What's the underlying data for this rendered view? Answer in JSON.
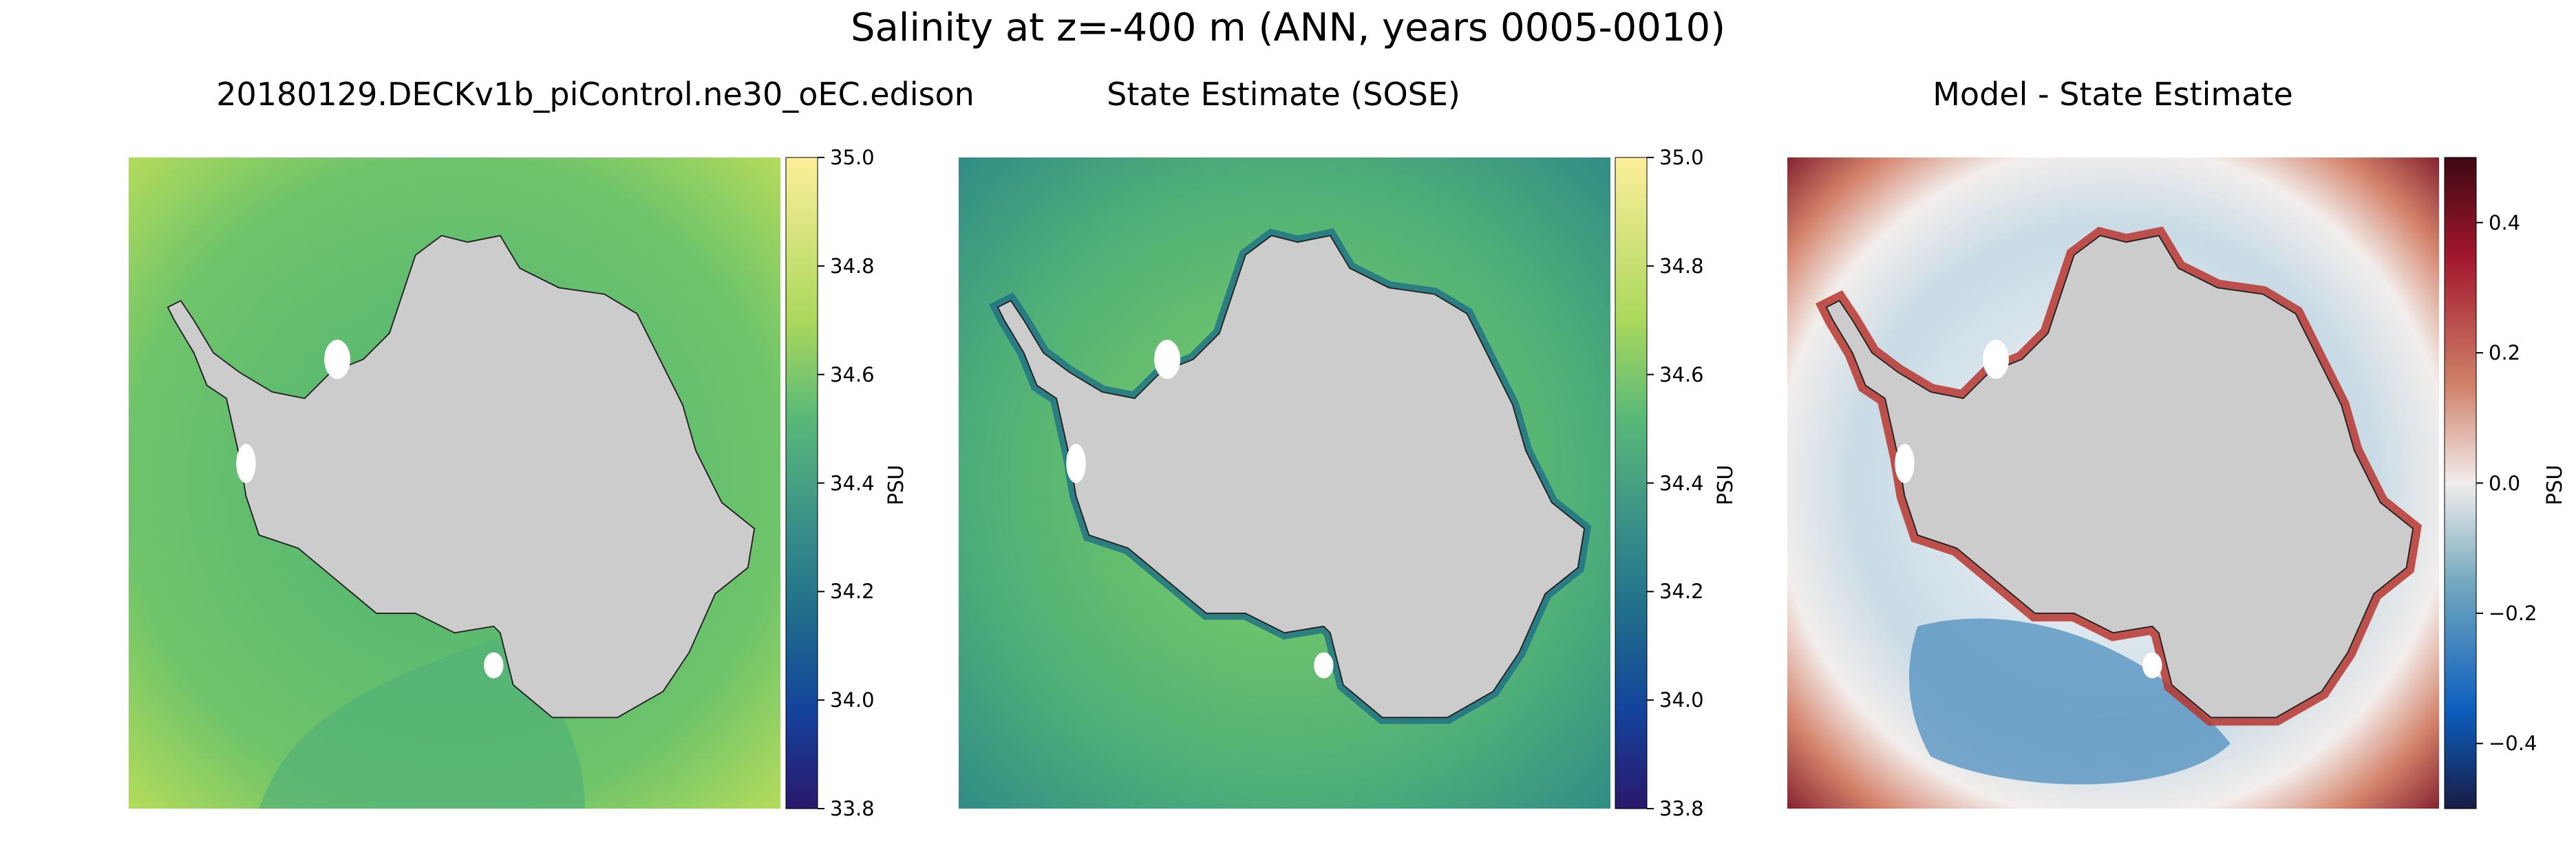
{
  "chart_data": [
    {
      "type": "heatmap",
      "title": "20180129.DECKv1b_piControl.ne30_oEC.edison",
      "colormap": "haline",
      "clim": [
        33.8,
        35.0
      ],
      "colorbar_ticks": [
        "35.0",
        "34.8",
        "34.6",
        "34.4",
        "34.2",
        "34.0",
        "33.8"
      ],
      "colorbar_label": "PSU",
      "field_summary": {
        "open_ocean": 34.62,
        "shelf": 34.5,
        "outer_edge": 34.75
      }
    },
    {
      "type": "heatmap",
      "title": "State Estimate (SOSE)",
      "colormap": "haline",
      "clim": [
        33.8,
        35.0
      ],
      "colorbar_ticks": [
        "35.0",
        "34.8",
        "34.6",
        "34.4",
        "34.2",
        "34.0",
        "33.8"
      ],
      "colorbar_label": "PSU",
      "field_summary": {
        "open_ocean": 34.66,
        "shelf": 34.38,
        "outer_edge": 34.45
      }
    },
    {
      "type": "heatmap",
      "title": "Model - State Estimate",
      "colormap": "balance",
      "clim": [
        -0.5,
        0.5
      ],
      "colorbar_ticks": [
        "0.4",
        "0.2",
        "0.0",
        "−0.2",
        "−0.4"
      ],
      "colorbar_tick_values": [
        0.4,
        0.2,
        0.0,
        -0.2,
        -0.4
      ],
      "colorbar_label": "PSU",
      "field_summary": {
        "open_ocean": -0.1,
        "shelf": 0.3,
        "outer_edge": 0.45
      }
    }
  ],
  "figure": {
    "suptitle": "Salinity at z=-400 m (ANN, years 0005-0010)"
  }
}
